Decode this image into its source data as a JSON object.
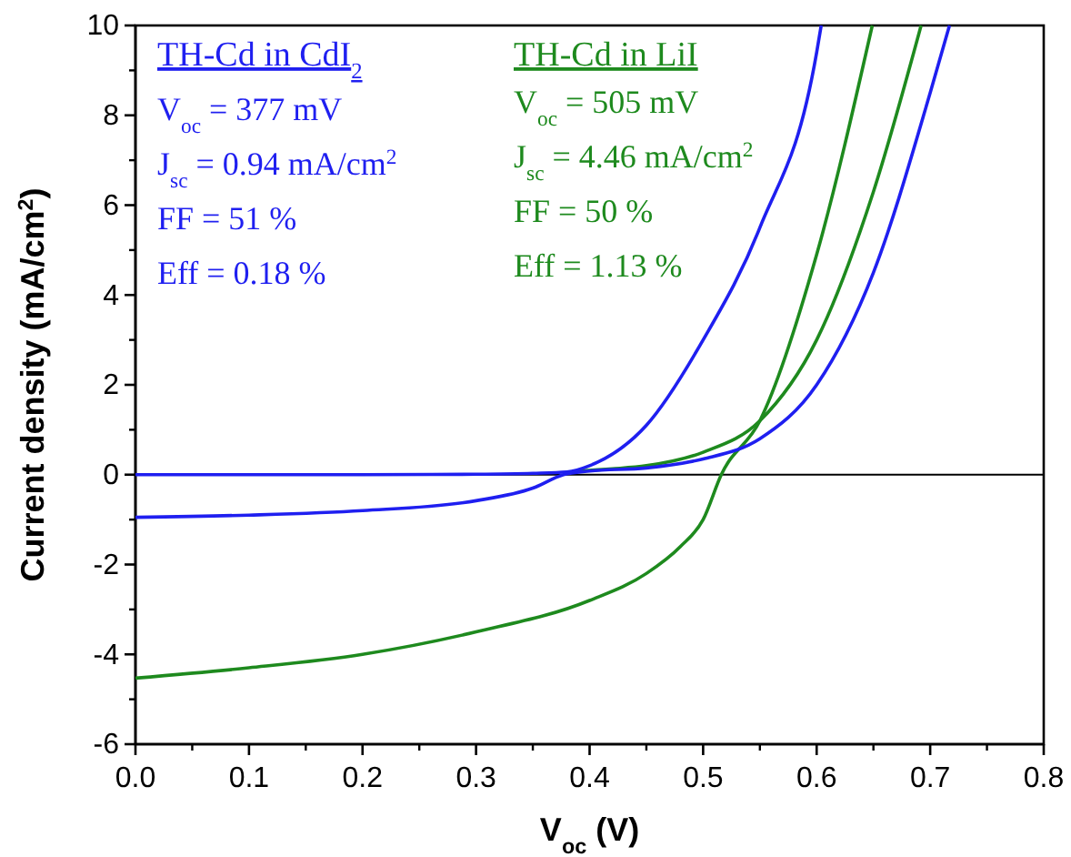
{
  "chart_data": {
    "type": "line",
    "xlabel": "V$_{oc}$ (V)",
    "ylabel": "Current density (mA/cm$^{2}$)",
    "xlim": [
      0,
      0.8
    ],
    "xticks": [
      {
        "value": 0,
        "label": "0.0"
      },
      {
        "value": 0.1,
        "label": "0.1"
      },
      {
        "value": 0.2,
        "label": "0.2"
      },
      {
        "value": 0.3,
        "label": "0.3"
      },
      {
        "value": 0.4,
        "label": "0.4"
      },
      {
        "value": 0.5,
        "label": "0.5"
      },
      {
        "value": 0.6,
        "label": "0.6"
      },
      {
        "value": 0.7,
        "label": "0.7"
      },
      {
        "value": 0.8,
        "label": "0.8"
      }
    ],
    "ylim": [
      -6,
      10
    ],
    "yticks": [
      -6,
      -4,
      -2,
      0,
      2,
      4,
      6,
      8,
      10
    ],
    "grid": false,
    "legend": "top left",
    "marker": "none",
    "line_style": "solid",
    "ref_lines": [
      {
        "axis": "y",
        "value": 0,
        "color": "#000000"
      }
    ],
    "series": [
      {
        "name": "TH-Cd in CdI$_{2}$",
        "color": "#1f1ff0",
        "x": [
          0,
          0.1,
          0.2,
          0.3,
          0.35,
          0.38,
          0.4,
          0.45,
          0.5,
          0.55,
          0.6,
          0.604
        ],
        "values": [
          0,
          0,
          0,
          0.01,
          0.03,
          0.06,
          0.2,
          1.1,
          3.0,
          5.5,
          9.4,
          10
        ]
      },
      {
        "color": "#1f1ff0",
        "x": [
          0,
          0.1,
          0.2,
          0.3,
          0.35,
          0.377,
          0.4,
          0.45,
          0.5,
          0.55,
          0.6,
          0.65,
          0.7,
          0.717
        ],
        "values": [
          -0.95,
          -0.9,
          -0.8,
          -0.58,
          -0.3,
          0,
          0.08,
          0.15,
          0.35,
          0.8,
          2.0,
          4.5,
          8.5,
          10
        ]
      },
      {
        "name": "TH-Cd in LiI",
        "color": "#1e8a1e",
        "x": [
          0,
          0.1,
          0.2,
          0.3,
          0.4,
          0.45,
          0.48,
          0.5,
          0.516,
          0.55,
          0.6,
          0.649
        ],
        "values": [
          -4.53,
          -4.3,
          -4.0,
          -3.5,
          -2.8,
          -2.2,
          -1.6,
          -1.0,
          0,
          1.2,
          4.9,
          10
        ]
      },
      {
        "color": "#1e8a1e",
        "x": [
          0.39,
          0.42,
          0.45,
          0.5,
          0.55,
          0.6,
          0.65,
          0.692
        ],
        "values": [
          0.08,
          0.13,
          0.2,
          0.5,
          1.2,
          3.0,
          6.3,
          10
        ]
      }
    ],
    "annotations": [
      "V$_{oc}$ = 377 mV",
      "J$_{sc}$ = 0.94 mA/cm$^{2}$",
      "FF = 51 %",
      "Eff = 0.18 %",
      "V$_{oc}$ = 505 mV",
      "J$_{sc}$ = 4.46 mA/cm$^{2}$",
      "FF = 50 %",
      "Eff = 1.13 %"
    ]
  }
}
